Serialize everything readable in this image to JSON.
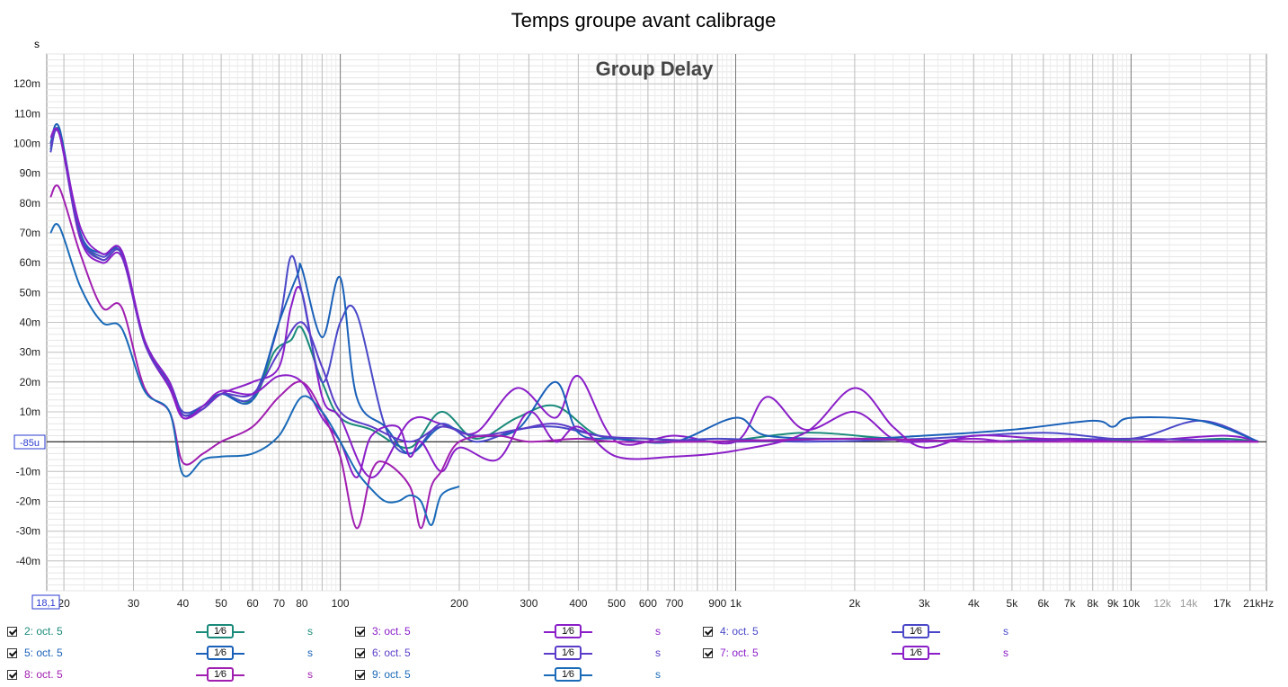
{
  "chart_data": {
    "type": "line",
    "title": "Temps groupe avant calibrage",
    "subtitle": "Group Delay",
    "ylabel": "s",
    "xscale": "log",
    "xlim": [
      18.1,
      22000
    ],
    "ylim": [
      -0.05,
      0.13
    ],
    "grid": true,
    "cursor_readout": "-85u",
    "x_start_readout": "18,1",
    "y_ticks": [
      {
        "value": 0.12,
        "label": "120m"
      },
      {
        "value": 0.11,
        "label": "110m"
      },
      {
        "value": 0.1,
        "label": "100m"
      },
      {
        "value": 0.09,
        "label": "90m"
      },
      {
        "value": 0.08,
        "label": "80m"
      },
      {
        "value": 0.07,
        "label": "70m"
      },
      {
        "value": 0.06,
        "label": "60m"
      },
      {
        "value": 0.05,
        "label": "50m"
      },
      {
        "value": 0.04,
        "label": "40m"
      },
      {
        "value": 0.03,
        "label": "30m"
      },
      {
        "value": 0.02,
        "label": "20m"
      },
      {
        "value": 0.01,
        "label": "10m"
      },
      {
        "value": -0.01,
        "label": "-10m"
      },
      {
        "value": -0.02,
        "label": "-20m"
      },
      {
        "value": -0.03,
        "label": "-30m"
      },
      {
        "value": -0.04,
        "label": "-40m"
      }
    ],
    "x_ticks": [
      {
        "value": 20,
        "label": "20"
      },
      {
        "value": 30,
        "label": "30"
      },
      {
        "value": 40,
        "label": "40"
      },
      {
        "value": 50,
        "label": "50"
      },
      {
        "value": 60,
        "label": "60"
      },
      {
        "value": 70,
        "label": "70"
      },
      {
        "value": 80,
        "label": "80"
      },
      {
        "value": 100,
        "label": "100"
      },
      {
        "value": 200,
        "label": "200"
      },
      {
        "value": 300,
        "label": "300"
      },
      {
        "value": 400,
        "label": "400"
      },
      {
        "value": 500,
        "label": "500"
      },
      {
        "value": 600,
        "label": "600"
      },
      {
        "value": 700,
        "label": "700"
      },
      {
        "value": 900,
        "label": "900"
      },
      {
        "value": 1000,
        "label": "1k"
      },
      {
        "value": 2000,
        "label": "2k"
      },
      {
        "value": 3000,
        "label": "3k"
      },
      {
        "value": 4000,
        "label": "4k"
      },
      {
        "value": 5000,
        "label": "5k"
      },
      {
        "value": 6000,
        "label": "6k"
      },
      {
        "value": 7000,
        "label": "7k"
      },
      {
        "value": 8000,
        "label": "8k"
      },
      {
        "value": 9000,
        "label": "9k"
      },
      {
        "value": 10000,
        "label": "10k"
      },
      {
        "value": 12000,
        "label": "12k",
        "faded": true
      },
      {
        "value": 14000,
        "label": "14k",
        "faded": true
      },
      {
        "value": 17000,
        "label": "17k"
      },
      {
        "value": 21000,
        "label": "21kHz"
      }
    ],
    "series": [
      {
        "name": "2: oct. 5",
        "color": "#1a8a7a",
        "x": [
          18.5,
          19.5,
          22,
          25,
          28,
          32,
          37,
          40,
          45,
          50,
          60,
          68,
          75,
          80,
          90,
          100,
          120,
          150,
          180,
          220,
          280,
          350,
          450,
          600,
          900,
          1500,
          2500,
          4000,
          7000,
          12000,
          17000,
          21000
        ],
        "y": [
          0.098,
          0.104,
          0.07,
          0.061,
          0.063,
          0.033,
          0.02,
          0.009,
          0.012,
          0.016,
          0.014,
          0.03,
          0.034,
          0.038,
          0.02,
          0.008,
          0.004,
          -0.002,
          0.01,
          0.001,
          0.008,
          0.012,
          0.002,
          0.001,
          0.0,
          0.003,
          0.001,
          0.0,
          0.001,
          0.0,
          0.001,
          0.0
        ]
      },
      {
        "name": "3: oct. 5",
        "color": "#8a1ec8",
        "x": [
          18.5,
          19.5,
          22,
          25,
          28,
          32,
          37,
          40,
          45,
          50,
          60,
          70,
          75,
          80,
          90,
          100,
          120,
          150,
          180,
          220,
          280,
          350,
          400,
          500,
          700,
          1000,
          1200,
          1500,
          2000,
          2500,
          3000,
          4000,
          5000,
          7000,
          10000,
          17000,
          21000
        ],
        "y": [
          0.1,
          0.103,
          0.068,
          0.06,
          0.062,
          0.033,
          0.018,
          0.008,
          0.011,
          0.016,
          0.02,
          0.025,
          0.045,
          0.05,
          0.015,
          0.008,
          -0.012,
          0.007,
          0.006,
          0.003,
          0.018,
          0.008,
          0.022,
          0.0,
          0.002,
          0.0,
          0.015,
          0.004,
          0.01,
          0.001,
          0.0,
          0.001,
          0.0,
          0.001,
          0.0,
          0.002,
          0.0
        ]
      },
      {
        "name": "4: oct. 5",
        "color": "#4a48c8",
        "x": [
          18.5,
          19.5,
          22,
          25,
          28,
          32,
          37,
          40,
          45,
          50,
          60,
          70,
          75,
          80,
          90,
          100,
          110,
          130,
          150,
          180,
          220,
          280,
          350,
          450,
          600,
          900,
          1500,
          3000,
          6000,
          10000,
          15000,
          21000
        ],
        "y": [
          0.097,
          0.104,
          0.07,
          0.062,
          0.064,
          0.034,
          0.02,
          0.01,
          0.012,
          0.016,
          0.015,
          0.04,
          0.062,
          0.05,
          0.02,
          0.04,
          0.043,
          0.005,
          -0.004,
          0.006,
          0.0,
          0.004,
          0.005,
          0.002,
          0.0,
          0.001,
          0.0,
          0.001,
          0.003,
          0.001,
          0.007,
          0.0
        ]
      },
      {
        "name": "5: oct. 5",
        "color": "#1a60b8",
        "x": [
          18.5,
          19.5,
          22,
          25,
          28,
          32,
          37,
          40,
          45,
          50,
          60,
          70,
          78,
          80,
          90,
          100,
          110,
          130,
          150,
          180,
          220,
          280,
          350,
          400,
          500,
          700,
          1000,
          1200,
          2000,
          3000,
          5000,
          8000,
          9000,
          10000,
          15000,
          21000
        ],
        "y": [
          0.1,
          0.105,
          0.07,
          0.063,
          0.063,
          0.034,
          0.02,
          0.009,
          0.012,
          0.016,
          0.014,
          0.04,
          0.056,
          0.058,
          0.035,
          0.055,
          0.015,
          0.005,
          -0.004,
          0.005,
          0.002,
          0.004,
          0.02,
          0.003,
          0.001,
          0.0,
          0.008,
          0.002,
          0.001,
          0.002,
          0.004,
          0.007,
          0.005,
          0.008,
          0.007,
          0.0
        ]
      },
      {
        "name": "6: oct. 5",
        "color": "#5a3cc8",
        "x": [
          18.5,
          19.5,
          22,
          25,
          28,
          32,
          37,
          40,
          45,
          50,
          60,
          70,
          80,
          90,
          100,
          120,
          150,
          180,
          220,
          280,
          350,
          450,
          600,
          1000,
          2000,
          4000,
          10000,
          21000
        ],
        "y": [
          0.099,
          0.103,
          0.069,
          0.061,
          0.063,
          0.033,
          0.019,
          0.009,
          0.011,
          0.016,
          0.016,
          0.03,
          0.04,
          0.025,
          0.01,
          0.005,
          0.0,
          0.005,
          0.002,
          0.004,
          0.006,
          0.002,
          0.001,
          0.0,
          0.001,
          0.0,
          0.001,
          0.0
        ]
      },
      {
        "name": "7: oct. 5",
        "color": "#8a1ec8",
        "x": [
          18.5,
          19.5,
          22,
          25,
          28,
          32,
          37,
          40,
          45,
          50,
          60,
          70,
          80,
          90,
          100,
          110,
          120,
          140,
          150,
          160,
          180,
          200,
          250,
          300,
          350,
          400,
          500,
          700,
          1000,
          1500,
          2000,
          2500,
          3000,
          4000,
          6000,
          10000,
          21000
        ],
        "y": [
          0.102,
          0.103,
          0.072,
          0.063,
          0.064,
          0.034,
          0.02,
          0.008,
          0.012,
          0.017,
          0.016,
          0.022,
          0.02,
          0.008,
          0.0,
          -0.012,
          0.002,
          0.005,
          -0.005,
          0.0,
          -0.01,
          -0.002,
          -0.006,
          0.01,
          0.0,
          0.005,
          -0.005,
          -0.005,
          -0.003,
          0.003,
          0.018,
          0.005,
          -0.002,
          0.002,
          0.001,
          0.0,
          0.0
        ]
      },
      {
        "name": "8: oct. 5",
        "color": "#a01eb0",
        "x": [
          18.5,
          19.5,
          22,
          25,
          28,
          32,
          37,
          40,
          45,
          50,
          60,
          70,
          80,
          90,
          100,
          110,
          120,
          130,
          150,
          160,
          170,
          180,
          200,
          250,
          300,
          400,
          500,
          800,
          2000,
          4000,
          6000,
          21000
        ],
        "y": [
          0.082,
          0.085,
          0.063,
          0.045,
          0.045,
          0.018,
          0.01,
          -0.007,
          -0.004,
          0.0,
          0.005,
          0.015,
          0.02,
          0.01,
          -0.005,
          -0.029,
          -0.01,
          -0.007,
          -0.015,
          -0.029,
          -0.015,
          -0.01,
          0.0,
          0.002,
          0.0,
          0.001,
          0.0,
          0.0,
          0.001,
          0.0,
          0.0,
          0.0
        ]
      },
      {
        "name": "9: oct. 5",
        "color": "#1a6ab8",
        "x": [
          18.5,
          19.5,
          22,
          25,
          28,
          32,
          37,
          40,
          45,
          50,
          60,
          70,
          80,
          90,
          100,
          110,
          120,
          130,
          140,
          150,
          160,
          170,
          180,
          200
        ],
        "y": [
          0.07,
          0.072,
          0.052,
          0.04,
          0.038,
          0.017,
          0.01,
          -0.011,
          -0.006,
          -0.005,
          -0.004,
          0.002,
          0.015,
          0.01,
          0.0,
          -0.01,
          -0.016,
          -0.02,
          -0.02,
          -0.018,
          -0.02,
          -0.028,
          -0.018,
          -0.015
        ]
      }
    ]
  },
  "legend": {
    "items": [
      {
        "label": "2: oct. 5",
        "smoothing": "1⁄6",
        "unit": "s",
        "color": "#1a8a7a"
      },
      {
        "label": "3: oct. 5",
        "smoothing": "1⁄6",
        "unit": "s",
        "color": "#8a1ec8"
      },
      {
        "label": "4: oct. 5",
        "smoothing": "1⁄6",
        "unit": "s",
        "color": "#4a48c8"
      },
      {
        "label": "5: oct. 5",
        "smoothing": "1⁄6",
        "unit": "s",
        "color": "#1a60b8"
      },
      {
        "label": "6: oct. 5",
        "smoothing": "1⁄6",
        "unit": "s",
        "color": "#5a3cc8"
      },
      {
        "label": "7: oct. 5",
        "smoothing": "1⁄6",
        "unit": "s",
        "color": "#8a1ec8"
      },
      {
        "label": "8: oct. 5",
        "smoothing": "1⁄6",
        "unit": "s",
        "color": "#a01eb0"
      },
      {
        "label": "9: oct. 5",
        "smoothing": "1⁄6",
        "unit": "s",
        "color": "#1a6ab8"
      }
    ]
  }
}
